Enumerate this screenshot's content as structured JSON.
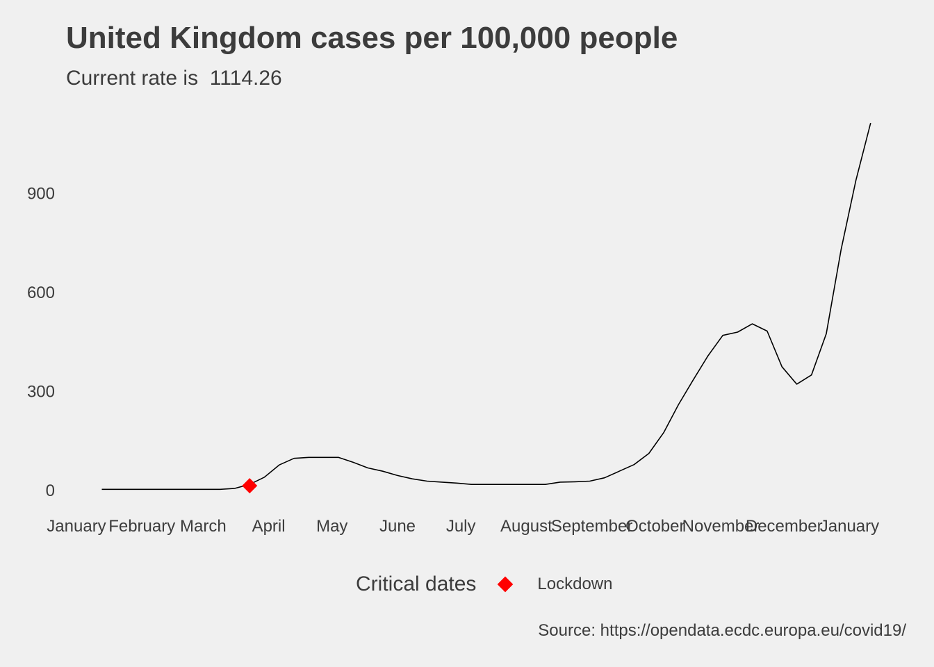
{
  "title": "United Kingdom cases per 100,000 people",
  "subtitle": "Current rate is  1114.26",
  "caption": "Source: https://opendata.ecdc.europa.eu/covid19/",
  "legend": {
    "title": "Critical dates",
    "items": [
      {
        "label": "Lockdown",
        "color": "#ff0000",
        "shape": "diamond"
      }
    ]
  },
  "chart_data": {
    "type": "line",
    "title": "United Kingdom cases per 100,000 people",
    "subtitle": "Current rate is  1114.26",
    "xlabel": "",
    "ylabel": "",
    "x_ticks": [
      "January",
      "February",
      "March",
      "April",
      "May",
      "June",
      "July",
      "August",
      "September",
      "October",
      "November",
      "December",
      "January"
    ],
    "x_tick_dates": [
      "2020-01-01",
      "2020-02-01",
      "2020-03-01",
      "2020-04-01",
      "2020-05-01",
      "2020-06-01",
      "2020-07-01",
      "2020-08-01",
      "2020-09-01",
      "2020-10-01",
      "2020-11-01",
      "2020-12-01",
      "2021-01-01"
    ],
    "xlim": [
      "2020-01-01",
      "2021-01-15"
    ],
    "y_ticks": [
      0,
      300,
      600,
      900
    ],
    "ylim": [
      -30,
      1150
    ],
    "grid": false,
    "line_color": "#000000",
    "series": [
      {
        "x": [
          "2020-01-13",
          "2020-01-27",
          "2020-02-10",
          "2020-02-24",
          "2020-03-09",
          "2020-03-16",
          "2020-03-23",
          "2020-03-30",
          "2020-04-06",
          "2020-04-13",
          "2020-04-20",
          "2020-04-27",
          "2020-05-04",
          "2020-05-11",
          "2020-05-18",
          "2020-05-25",
          "2020-06-01",
          "2020-06-08",
          "2020-06-15",
          "2020-06-22",
          "2020-06-29",
          "2020-07-06",
          "2020-07-13",
          "2020-07-20",
          "2020-07-27",
          "2020-08-03",
          "2020-08-10",
          "2020-08-17",
          "2020-08-24",
          "2020-08-31",
          "2020-09-07",
          "2020-09-14",
          "2020-09-21",
          "2020-09-28",
          "2020-10-05",
          "2020-10-12",
          "2020-10-19",
          "2020-10-26",
          "2020-11-02",
          "2020-11-09",
          "2020-11-16",
          "2020-11-23",
          "2020-11-30",
          "2020-12-07",
          "2020-12-14",
          "2020-12-21",
          "2020-12-28",
          "2021-01-04",
          "2021-01-11"
        ],
        "y": [
          3,
          3,
          3,
          3,
          3,
          6,
          18,
          40,
          77,
          97,
          100,
          100,
          100,
          85,
          68,
          58,
          45,
          35,
          28,
          25,
          22,
          18,
          18,
          18,
          18,
          18,
          18,
          25,
          26,
          28,
          38,
          58,
          78,
          112,
          175,
          260,
          335,
          408,
          470,
          480,
          505,
          483,
          375,
          322,
          350,
          475,
          730,
          940,
          1114
        ]
      }
    ],
    "markers": [
      {
        "label": "Lockdown",
        "date": "2020-03-23",
        "y": 14,
        "color": "#ff0000",
        "shape": "diamond"
      }
    ]
  }
}
